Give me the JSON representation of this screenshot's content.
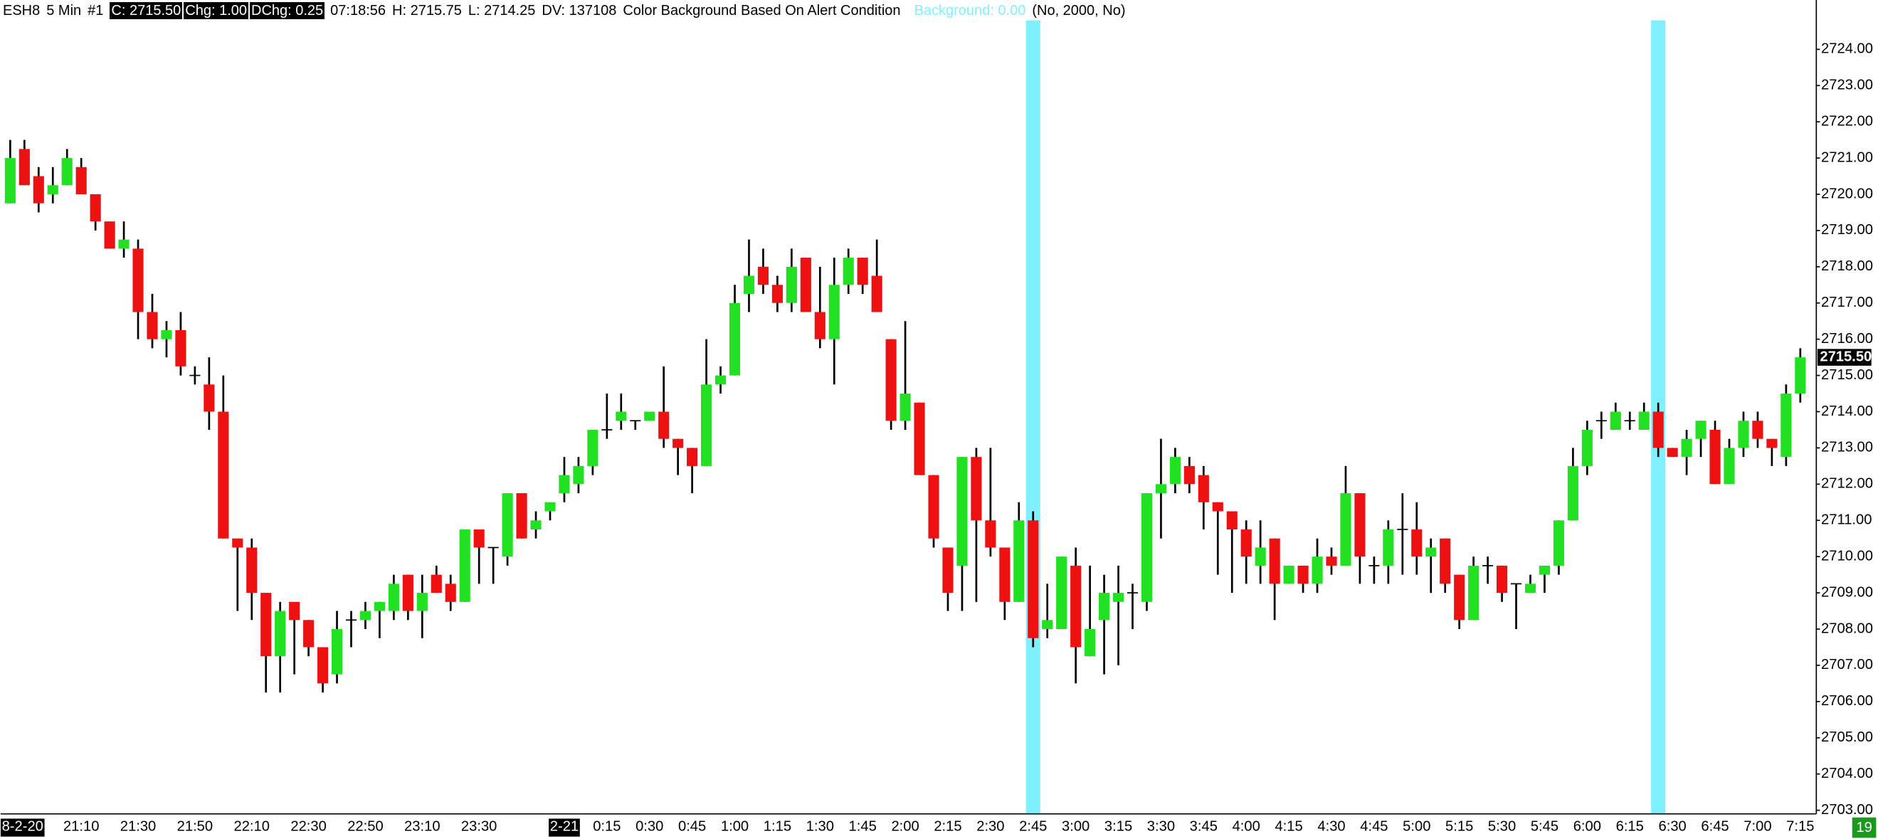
{
  "chart_data": {
    "type": "candlestick",
    "header": {
      "symbol": "ESH8",
      "interval": "5 Min",
      "chart_id": "#1",
      "close": "C: 2715.50",
      "change": "Chg: 1.00",
      "daily_change": "DChg: 0.25",
      "time": "07:18:56",
      "high": "H: 2715.75",
      "low": "L: 2714.25",
      "daily_volume": "DV: 137108",
      "study": "Color Background Based On Alert Condition",
      "study_value": "Background: 0.00",
      "study_params": "(No, 2000, No)"
    },
    "categories": [
      "8-2-20",
      null,
      null,
      null,
      null,
      "21:10",
      null,
      null,
      null,
      "21:30",
      null,
      null,
      null,
      "21:50",
      null,
      null,
      null,
      "22:10",
      null,
      null,
      null,
      "22:30",
      null,
      null,
      null,
      "22:50",
      null,
      null,
      null,
      "23:10",
      null,
      null,
      null,
      "23:30",
      null,
      null,
      null,
      null,
      null,
      "2-21",
      null,
      null,
      "0:15",
      null,
      null,
      "0:30",
      null,
      null,
      "0:45",
      null,
      null,
      "1:00",
      null,
      null,
      "1:15",
      null,
      null,
      "1:30",
      null,
      null,
      "1:45",
      null,
      null,
      "2:00",
      null,
      null,
      "2:15",
      null,
      null,
      "2:30",
      null,
      null,
      "2:45",
      null,
      null,
      "3:00",
      null,
      null,
      "3:15",
      null,
      null,
      "3:30",
      null,
      null,
      "3:45",
      null,
      null,
      "4:00",
      null,
      null,
      "4:15",
      null,
      null,
      "4:30",
      null,
      null,
      "4:45",
      null,
      null,
      "5:00",
      null,
      null,
      "5:15",
      null,
      null,
      "5:30",
      null,
      null,
      "5:45",
      null,
      null,
      "6:00",
      null,
      null,
      "6:15",
      null,
      null,
      "6:30",
      null,
      null,
      "6:45",
      null,
      null,
      "7:00",
      null,
      null,
      "7:15"
    ],
    "open": [
      2719.75,
      2721.25,
      2720.5,
      2720.0,
      2720.25,
      2720.75,
      2720.0,
      2719.25,
      2718.5,
      2718.5,
      2716.75,
      2716.0,
      2716.25,
      2715.0,
      2714.75,
      2714.0,
      2710.5,
      2710.25,
      2709.0,
      2707.25,
      2708.75,
      2708.25,
      2707.5,
      2706.75,
      2708.25,
      2708.25,
      2708.5,
      2708.5,
      2709.5,
      2708.5,
      2709.5,
      2709.25,
      2708.75,
      2710.75,
      2710.25,
      2710.0,
      2711.75,
      2710.75,
      2711.25,
      2711.75,
      2712.0,
      2712.5,
      2713.5,
      2713.75,
      2713.75,
      2713.75,
      2714.0,
      2713.25,
      2713.0,
      2712.5,
      2714.75,
      2715.0,
      2717.25,
      2718.0,
      2717.5,
      2717.0,
      2718.25,
      2716.75,
      2716.0,
      2717.5,
      2718.25,
      2717.75,
      2716.0,
      2713.75,
      2714.25,
      2712.25,
      2710.25,
      2709.75,
      2712.75,
      2711.0,
      2710.25,
      2708.75,
      2711.0,
      2708.0,
      2708.0,
      2709.75,
      2707.25,
      2708.25,
      2708.75,
      2709.0,
      2708.75,
      2711.75,
      2712.0,
      2712.5,
      2712.25,
      2711.5,
      2711.25,
      2710.75,
      2709.75,
      2710.5,
      2709.25,
      2709.75,
      2709.25,
      2710.0,
      2709.75,
      2711.75,
      2709.75,
      2709.75,
      2710.75,
      2710.75,
      2710.0,
      2710.5,
      2709.5,
      2708.25,
      2709.75,
      2709.75,
      2709.25,
      2709.0,
      2709.5,
      2709.75,
      2711.0,
      2712.5,
      2713.75,
      2713.5,
      2713.75,
      2713.5,
      2714.0,
      2713.0,
      2712.75,
      2713.25,
      2713.5,
      2712.0,
      2713.0,
      2713.75,
      2713.25,
      2712.75,
      2714.5
    ],
    "high": [
      2721.5,
      2721.5,
      2720.75,
      2720.75,
      2721.25,
      2721.0,
      2720.0,
      2719.25,
      2719.25,
      2718.75,
      2717.25,
      2716.5,
      2716.75,
      2715.25,
      2715.5,
      2715.0,
      2710.5,
      2710.5,
      2709.0,
      2708.75,
      2708.75,
      2708.25,
      2707.5,
      2708.5,
      2708.5,
      2708.75,
      2708.75,
      2709.5,
      2709.5,
      2709.5,
      2709.75,
      2709.5,
      2710.75,
      2710.75,
      2710.25,
      2711.75,
      2711.75,
      2711.25,
      2711.5,
      2712.75,
      2712.75,
      2713.5,
      2714.5,
      2714.5,
      2713.75,
      2714.0,
      2715.25,
      2713.25,
      2713.0,
      2716.0,
      2715.25,
      2717.5,
      2718.75,
      2718.5,
      2717.75,
      2718.5,
      2718.25,
      2718.0,
      2718.25,
      2718.5,
      2718.25,
      2718.75,
      2716.0,
      2716.5,
      2714.25,
      2712.25,
      2710.25,
      2712.75,
      2713.0,
      2713.0,
      2710.25,
      2711.5,
      2711.25,
      2709.25,
      2710.0,
      2710.25,
      2709.75,
      2709.5,
      2709.75,
      2709.25,
      2711.75,
      2713.25,
      2713.0,
      2712.75,
      2712.5,
      2711.5,
      2711.25,
      2711.0,
      2711.0,
      2710.5,
      2709.75,
      2709.75,
      2710.5,
      2710.25,
      2712.5,
      2711.75,
      2710.0,
      2711.0,
      2711.75,
      2711.5,
      2710.5,
      2710.5,
      2709.5,
      2710.0,
      2710.0,
      2709.75,
      2709.25,
      2709.5,
      2709.75,
      2711.0,
      2713.0,
      2713.75,
      2714.0,
      2714.25,
      2714.0,
      2714.25,
      2714.25,
      2713.0,
      2713.5,
      2713.75,
      2713.75,
      2713.25,
      2714.0,
      2714.0,
      2713.25,
      2714.75,
      2715.75
    ],
    "low": [
      2719.75,
      2720.25,
      2719.5,
      2719.75,
      2720.25,
      2720.0,
      2719.0,
      2718.5,
      2718.25,
      2716.0,
      2715.75,
      2715.5,
      2715.0,
      2714.75,
      2713.5,
      2710.5,
      2708.5,
      2708.25,
      2706.25,
      2706.25,
      2706.75,
      2707.25,
      2706.25,
      2706.5,
      2707.5,
      2708.0,
      2707.75,
      2708.25,
      2708.25,
      2707.75,
      2709.0,
      2708.5,
      2708.75,
      2709.25,
      2709.25,
      2709.75,
      2710.5,
      2710.5,
      2711.0,
      2711.5,
      2711.75,
      2712.25,
      2713.25,
      2713.5,
      2713.5,
      2713.75,
      2713.0,
      2712.25,
      2711.75,
      2712.5,
      2714.5,
      2715.0,
      2716.75,
      2717.25,
      2716.75,
      2716.75,
      2716.75,
      2715.75,
      2714.75,
      2717.25,
      2717.25,
      2716.75,
      2713.5,
      2713.5,
      2712.25,
      2710.25,
      2708.5,
      2708.5,
      2708.75,
      2710.0,
      2708.25,
      2708.75,
      2707.5,
      2707.75,
      2708.0,
      2706.5,
      2707.25,
      2706.75,
      2707.0,
      2708.0,
      2708.5,
      2710.5,
      2711.75,
      2711.75,
      2710.75,
      2709.5,
      2709.0,
      2709.25,
      2709.25,
      2708.25,
      2709.25,
      2709.0,
      2709.0,
      2709.5,
      2709.75,
      2709.25,
      2709.25,
      2709.25,
      2709.5,
      2709.5,
      2709.0,
      2709.0,
      2708.0,
      2708.25,
      2709.25,
      2708.75,
      2708.0,
      2709.0,
      2709.0,
      2709.5,
      2711.0,
      2712.25,
      2713.25,
      2713.5,
      2713.5,
      2713.5,
      2712.75,
      2712.75,
      2712.25,
      2712.75,
      2712.0,
      2712.0,
      2712.75,
      2713.0,
      2712.5,
      2712.5,
      2714.25
    ],
    "close": [
      2721.0,
      2720.25,
      2719.75,
      2720.25,
      2721.0,
      2720.0,
      2719.25,
      2718.5,
      2718.75,
      2716.75,
      2716.0,
      2716.25,
      2715.25,
      2715.0,
      2714.0,
      2710.5,
      2710.25,
      2709.0,
      2707.25,
      2708.5,
      2708.25,
      2707.5,
      2706.5,
      2708.0,
      2708.25,
      2708.5,
      2708.75,
      2709.25,
      2708.5,
      2709.0,
      2709.0,
      2708.75,
      2710.75,
      2710.25,
      2710.25,
      2711.75,
      2710.5,
      2711.0,
      2711.5,
      2712.25,
      2712.5,
      2713.5,
      2713.5,
      2714.0,
      2713.75,
      2714.0,
      2713.25,
      2713.0,
      2712.5,
      2714.75,
      2715.0,
      2717.0,
      2717.75,
      2717.5,
      2717.0,
      2718.0,
      2716.75,
      2716.0,
      2717.5,
      2718.25,
      2717.5,
      2716.75,
      2713.75,
      2714.5,
      2712.25,
      2710.5,
      2709.0,
      2712.75,
      2711.0,
      2710.25,
      2708.75,
      2711.0,
      2707.75,
      2708.25,
      2710.0,
      2707.5,
      2708.0,
      2709.0,
      2709.0,
      2709.0,
      2711.75,
      2712.0,
      2712.75,
      2712.0,
      2711.5,
      2711.25,
      2710.75,
      2710.0,
      2710.25,
      2709.25,
      2709.75,
      2709.25,
      2710.0,
      2709.75,
      2711.75,
      2710.0,
      2709.75,
      2710.75,
      2710.75,
      2710.0,
      2710.25,
      2709.25,
      2708.25,
      2709.75,
      2709.75,
      2709.0,
      2709.25,
      2709.25,
      2709.75,
      2711.0,
      2712.5,
      2713.5,
      2713.75,
      2714.0,
      2713.75,
      2714.0,
      2713.0,
      2712.75,
      2713.25,
      2713.75,
      2712.0,
      2713.0,
      2713.75,
      2713.25,
      2713.0,
      2714.5,
      2715.5
    ],
    "up_color": "#22e022",
    "down_color": "#ee1111",
    "wick_color": "#000000",
    "alert": {
      "color": "#80f0ff",
      "values": [
        0,
        0,
        0,
        0,
        0,
        0,
        0,
        0,
        0,
        0,
        0,
        0,
        0,
        0,
        0,
        0,
        0,
        0,
        0,
        0,
        0,
        0,
        0,
        0,
        0,
        0,
        0,
        0,
        0,
        0,
        0,
        0,
        0,
        0,
        0,
        0,
        0,
        0,
        0,
        0,
        0,
        0,
        0,
        0,
        0,
        0,
        0,
        0,
        0,
        0,
        0,
        0,
        0,
        0,
        0,
        0,
        0,
        0,
        0,
        0,
        0,
        0,
        0,
        0,
        0,
        0,
        0,
        0,
        0,
        0,
        0,
        0,
        1,
        0,
        0,
        0,
        0,
        0,
        0,
        0,
        0,
        0,
        0,
        0,
        0,
        0,
        0,
        0,
        0,
        0,
        0,
        0,
        0,
        0,
        0,
        0,
        0,
        0,
        0,
        0,
        0,
        0,
        0,
        0,
        0,
        0,
        0,
        0,
        0,
        0,
        0,
        0,
        0,
        0,
        0,
        0,
        1,
        0,
        0,
        0,
        0,
        0,
        0,
        0,
        0,
        0,
        0
      ]
    },
    "ylim": [
      2702.9,
      2724.8
    ],
    "yticks": [
      {
        "value": 2703,
        "label": "2703.00"
      },
      {
        "value": 2704,
        "label": "2704.00"
      },
      {
        "value": 2705,
        "label": "2705.00"
      },
      {
        "value": 2706,
        "label": "2706.00"
      },
      {
        "value": 2707,
        "label": "2707.00"
      },
      {
        "value": 2708,
        "label": "2708.00"
      },
      {
        "value": 2709,
        "label": "2709.00"
      },
      {
        "value": 2710,
        "label": "2710.00"
      },
      {
        "value": 2711,
        "label": "2711.00"
      },
      {
        "value": 2712,
        "label": "2712.00"
      },
      {
        "value": 2713,
        "label": "2713.00"
      },
      {
        "value": 2714,
        "label": "2714.00"
      },
      {
        "value": 2715,
        "label": "2715.00"
      },
      {
        "value": 2716,
        "label": "2716.00"
      },
      {
        "value": 2717,
        "label": "2717.00"
      },
      {
        "value": 2718,
        "label": "2718.00"
      },
      {
        "value": 2719,
        "label": "2719.00"
      },
      {
        "value": 2720,
        "label": "2720.00"
      },
      {
        "value": 2721,
        "label": "2721.00"
      },
      {
        "value": 2722,
        "label": "2722.00"
      },
      {
        "value": 2723,
        "label": "2723.00"
      },
      {
        "value": 2724,
        "label": "2724.00"
      }
    ],
    "last_price": {
      "value": 2715.5,
      "label": "2715.50"
    },
    "bar_countdown": 19
  }
}
